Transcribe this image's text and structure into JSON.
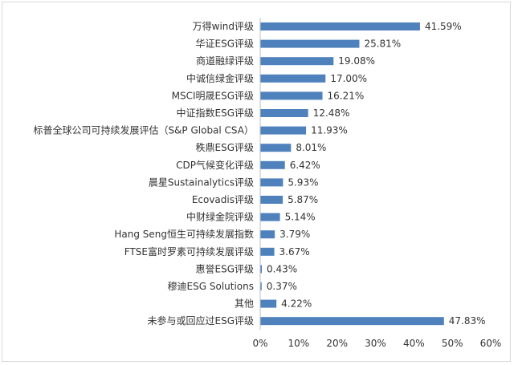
{
  "chart_data": {
    "type": "bar",
    "orientation": "horizontal",
    "categories": [
      "万得wind评级",
      "华证ESG评级",
      "商道融绿评级",
      "中诚信绿金评级",
      "MSCI明晟ESG评级",
      "中证指数ESG评级",
      "标普全球公司可持续发展评估（S&P Global CSA）",
      "秩鼎ESG评级",
      "CDP气候变化评级",
      "晨星Sustainalytics评级",
      "Ecovadis评级",
      "中财绿金院评级",
      "Hang Seng恒生可持续发展指数",
      "FTSE富时罗素可持续发展评级",
      "惠誉ESG评级",
      "穆迪ESG Solutions",
      "其他",
      "未参与或回应过ESG评级"
    ],
    "values": [
      41.59,
      25.81,
      19.08,
      17.0,
      16.21,
      12.48,
      11.93,
      8.01,
      6.42,
      5.93,
      5.87,
      5.14,
      3.79,
      3.67,
      0.43,
      0.37,
      4.22,
      47.83
    ],
    "value_labels": [
      "41.59%",
      "25.81%",
      "19.08%",
      "17.00%",
      "16.21%",
      "12.48%",
      "11.93%",
      "8.01%",
      "6.42%",
      "5.93%",
      "5.87%",
      "5.14%",
      "3.79%",
      "3.67%",
      "0.43%",
      "0.37%",
      "4.22%",
      "47.83%"
    ],
    "xlim": [
      0,
      60
    ],
    "x_ticks": [
      "0%",
      "10%",
      "20%",
      "30%",
      "40%",
      "50%",
      "60%"
    ],
    "bar_color": "#4f81bd",
    "grid": false,
    "legend": "none",
    "title": "",
    "xlabel": "",
    "ylabel": ""
  }
}
